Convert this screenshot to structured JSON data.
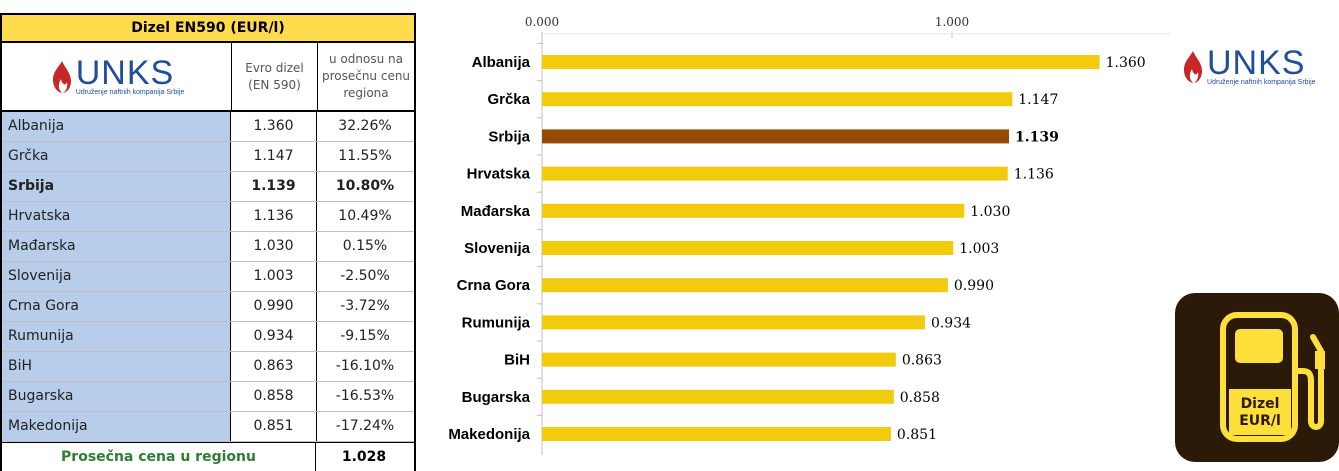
{
  "table": {
    "title": "Dizel EN590 (EUR/l)",
    "col2_header": [
      "Evro dizel",
      "(EN 590)"
    ],
    "col3_header": [
      "u odnosu na",
      "prosečnu cenu",
      "regiona"
    ],
    "rows": [
      {
        "country": "Albanija",
        "price": "1.360",
        "diff": "32.26%",
        "bold": false
      },
      {
        "country": "Grčka",
        "price": "1.147",
        "diff": "11.55%",
        "bold": false
      },
      {
        "country": "Srbija",
        "price": "1.139",
        "diff": "10.80%",
        "bold": true
      },
      {
        "country": "Hrvatska",
        "price": "1.136",
        "diff": "10.49%",
        "bold": false
      },
      {
        "country": "Mađarska",
        "price": "1.030",
        "diff": "0.15%",
        "bold": false
      },
      {
        "country": "Slovenija",
        "price": "1.003",
        "diff": "-2.50%",
        "bold": false
      },
      {
        "country": "Crna Gora",
        "price": "0.990",
        "diff": "-3.72%",
        "bold": false
      },
      {
        "country": "Rumunija",
        "price": "0.934",
        "diff": "-9.15%",
        "bold": false
      },
      {
        "country": "BiH",
        "price": "0.863",
        "diff": "-16.10%",
        "bold": false
      },
      {
        "country": "Bugarska",
        "price": "0.858",
        "diff": "-16.53%",
        "bold": false
      },
      {
        "country": "Makedonija",
        "price": "0.851",
        "diff": "-17.24%",
        "bold": false
      }
    ],
    "avg_label": "Prosečna cena u regionu",
    "avg_value": "1.028"
  },
  "logo": {
    "name": "UNKS",
    "subtitle": "Udruženje naftnih kompanija Srbije",
    "flame_color": "#c62828",
    "text_color": "#1f4e9a"
  },
  "fuel_icon": {
    "name": "fuel-pump-icon",
    "label_line1": "Dizel",
    "label_line2": "EUR/l",
    "bg_color": "#2b1a07",
    "fg_color": "#ffdf3a"
  },
  "chart_data": {
    "type": "bar",
    "orientation": "horizontal",
    "categories": [
      "Albanija",
      "Grčka",
      "Srbija",
      "Hrvatska",
      "Mađarska",
      "Slovenija",
      "Crna Gora",
      "Rumunija",
      "BiH",
      "Bugarska",
      "Makedonija"
    ],
    "values": [
      1.36,
      1.147,
      1.139,
      1.136,
      1.03,
      1.003,
      0.99,
      0.934,
      0.863,
      0.858,
      0.851
    ],
    "value_labels": [
      "1.360",
      "1.147",
      "1.139",
      "1.136",
      "1.030",
      "1.003",
      "0.990",
      "0.934",
      "0.863",
      "0.858",
      "0.851"
    ],
    "highlight": "Srbija",
    "bar_color": "#f2cc0c",
    "highlight_color": "#964b00",
    "xlim": [
      0,
      1.5
    ],
    "x_ticks": [
      "0.000",
      "1.000"
    ],
    "x_tick_values": [
      0,
      1
    ],
    "x_axis_position": "top",
    "grid": false,
    "legend": "none"
  }
}
